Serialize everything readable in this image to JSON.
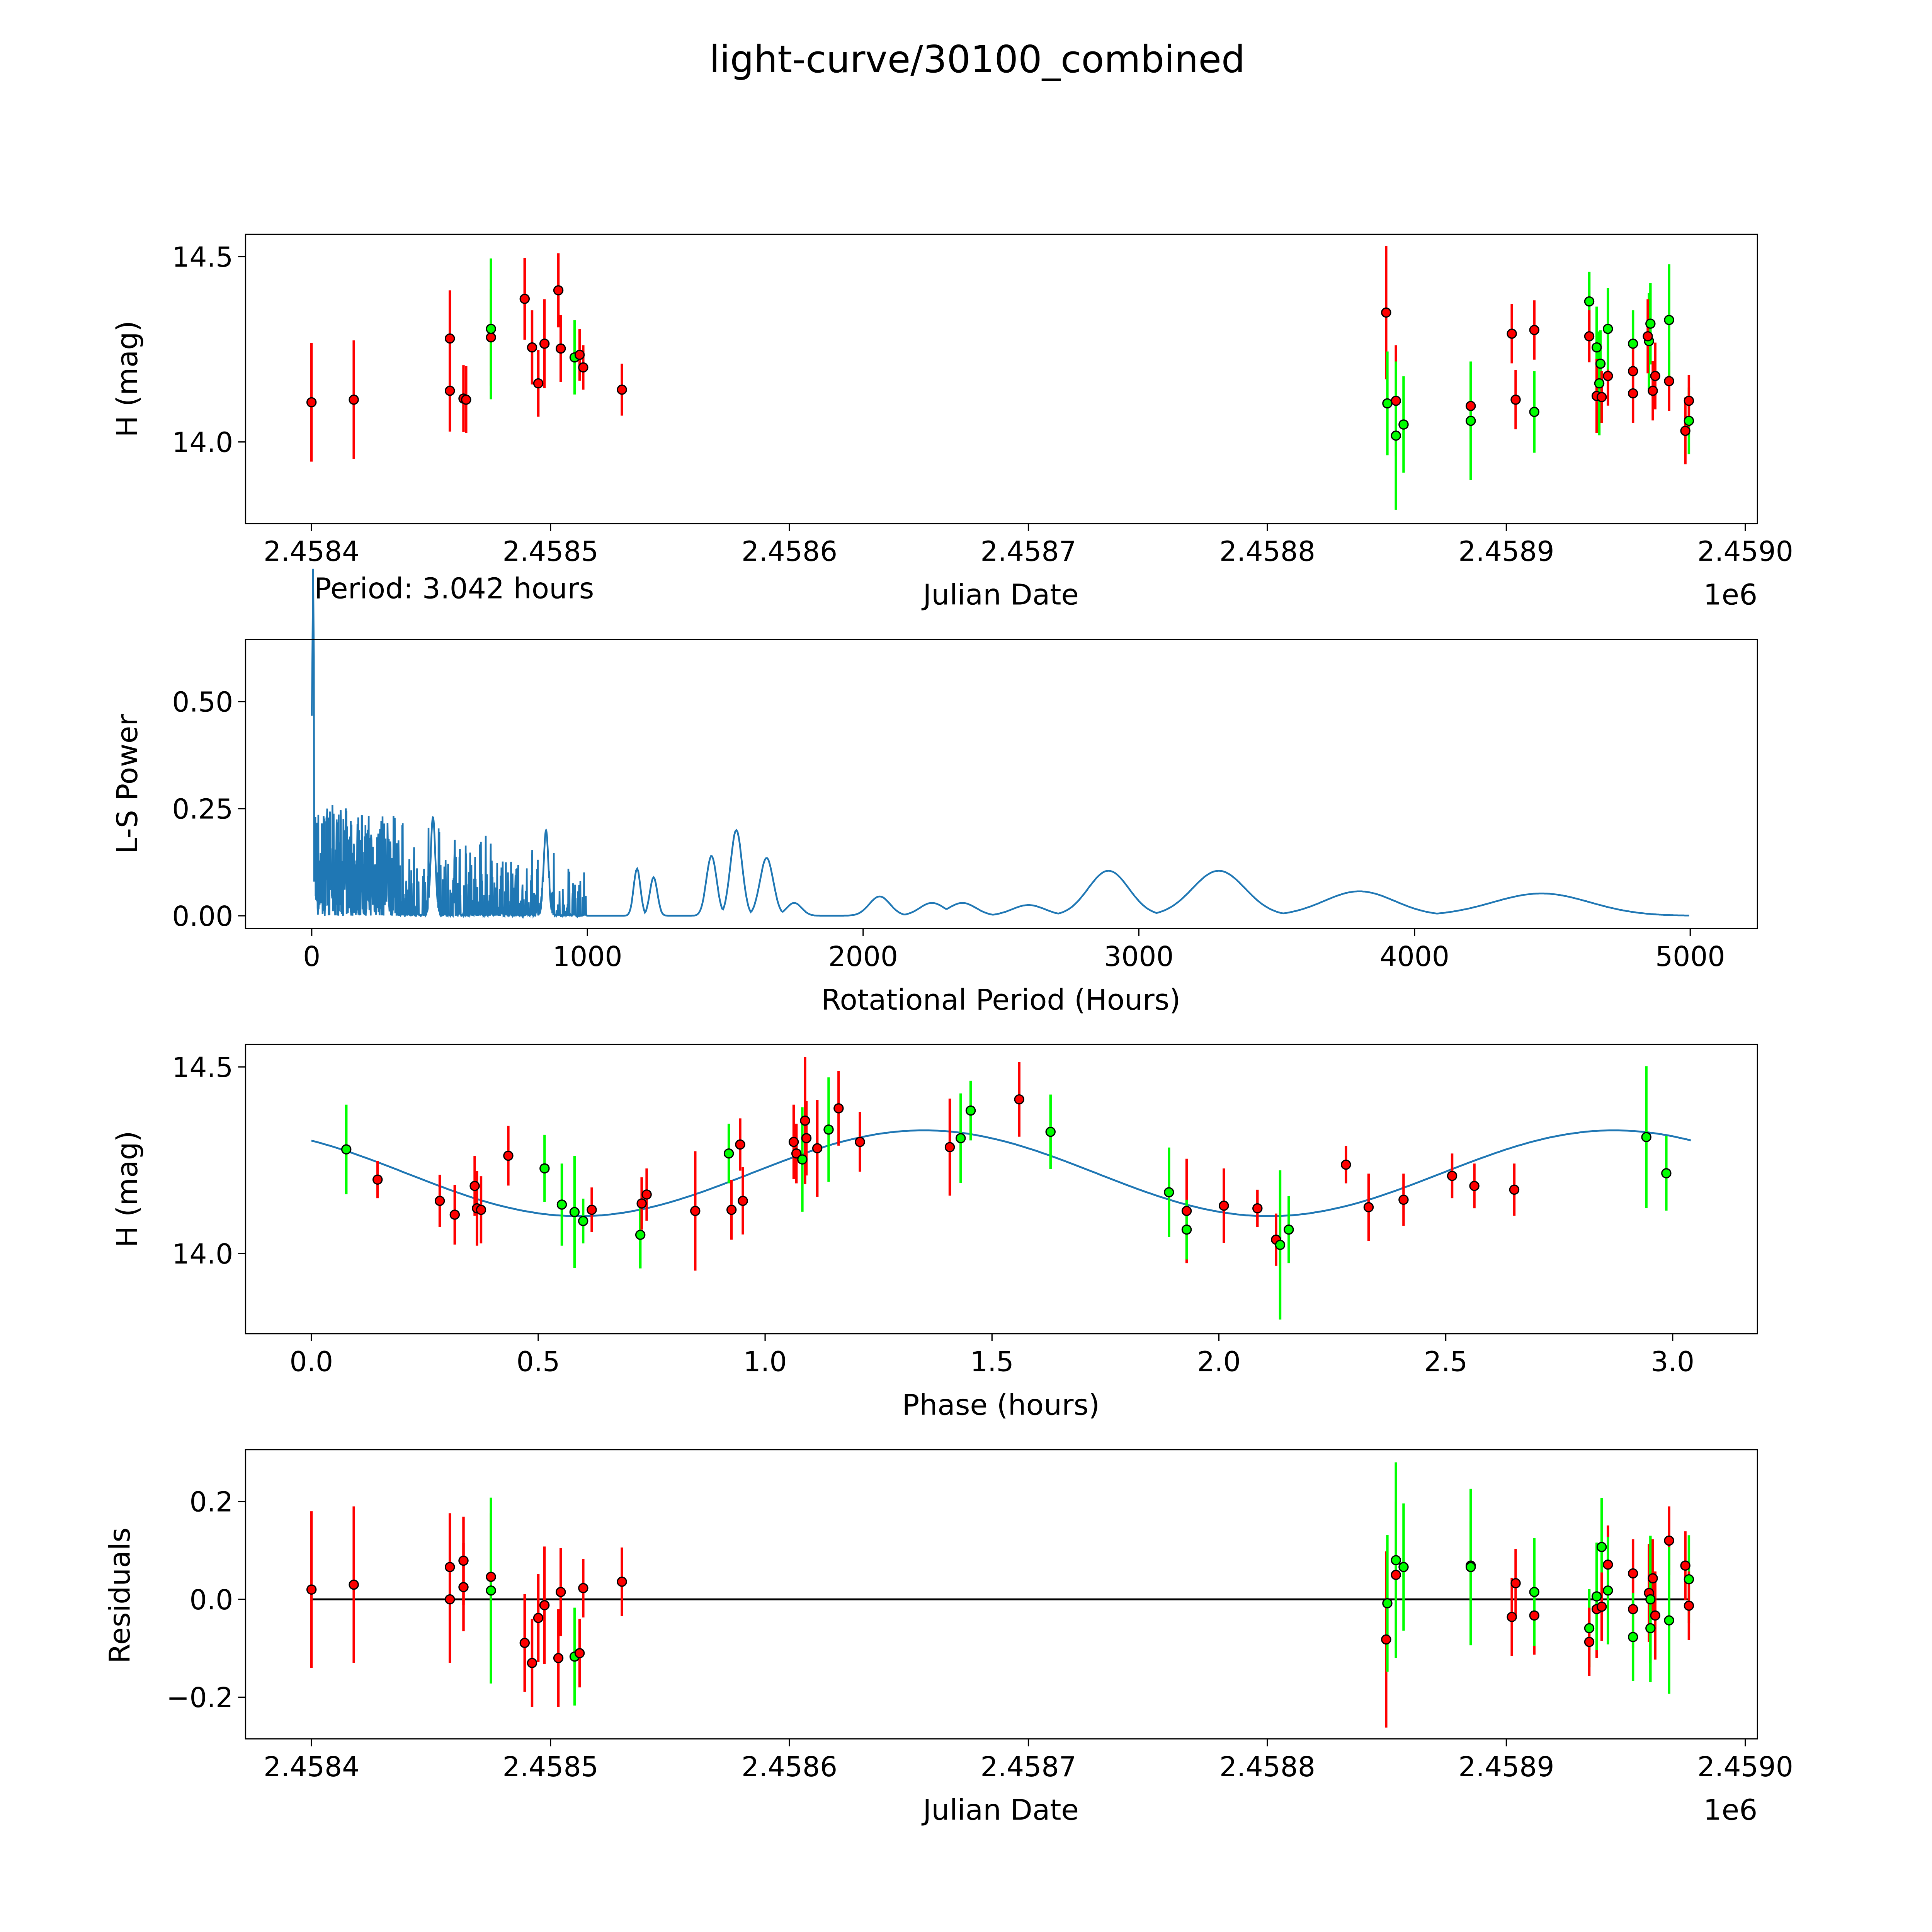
{
  "title": "light-curve/30100_combined",
  "colors": {
    "red": "#ff0000",
    "green": "#00ff00",
    "line": "#1f77b4",
    "edge": "#000000"
  },
  "chart_data": [
    {
      "type": "scatter",
      "name": "light-curve",
      "xlabel": "Julian Date",
      "ylabel": "H (mag)",
      "offset_text": "1e6",
      "annotation": "Period: 3.042 hours",
      "jd_base": 2458400,
      "xlim_offset": [
        -27.6,
        605.1
      ],
      "ylim": [
        13.78,
        14.56
      ],
      "xticks": [
        0,
        100,
        200,
        300,
        400,
        500,
        600
      ],
      "xtick_labels": [
        "2.4584",
        "2.4585",
        "2.4586",
        "2.4587",
        "2.4588",
        "2.4589",
        "2.4590"
      ],
      "yticks": [
        14.0,
        14.5
      ],
      "ytick_labels": [
        "14.0",
        "14.5"
      ],
      "points": [
        [
          0,
          14.107,
          0.16,
          "r"
        ],
        [
          17.7,
          14.114,
          0.16,
          "r"
        ],
        [
          57.9,
          14.279,
          0.13,
          "r"
        ],
        [
          57.9,
          14.138,
          0.11,
          "r"
        ],
        [
          63.6,
          14.117,
          0.09,
          "r"
        ],
        [
          64.7,
          14.114,
          0.09,
          "r"
        ],
        [
          75.1,
          14.282,
          0.13,
          "r"
        ],
        [
          75.1,
          14.305,
          0.19,
          "g"
        ],
        [
          89.2,
          14.386,
          0.11,
          "r"
        ],
        [
          92.3,
          14.255,
          0.1,
          "r"
        ],
        [
          94.9,
          14.158,
          0.09,
          "r"
        ],
        [
          97.5,
          14.265,
          0.12,
          "r"
        ],
        [
          103.3,
          14.409,
          0.1,
          "r"
        ],
        [
          104.3,
          14.252,
          0.09,
          "r"
        ],
        [
          110.1,
          14.228,
          0.1,
          "g"
        ],
        [
          112.2,
          14.235,
          0.07,
          "r"
        ],
        [
          113.7,
          14.201,
          0.06,
          "r"
        ],
        [
          129.9,
          14.141,
          0.07,
          "r"
        ],
        [
          449.7,
          14.349,
          0.18,
          "r"
        ],
        [
          450.2,
          14.104,
          0.14,
          "g"
        ],
        [
          453.8,
          14.111,
          0.15,
          "r"
        ],
        [
          453.8,
          14.017,
          0.2,
          "g"
        ],
        [
          457.0,
          14.047,
          0.13,
          "g"
        ],
        [
          485.1,
          14.097,
          0.09,
          "r"
        ],
        [
          485.1,
          14.057,
          0.16,
          "g"
        ],
        [
          502.3,
          14.292,
          0.08,
          "r"
        ],
        [
          503.9,
          14.114,
          0.08,
          "r"
        ],
        [
          511.7,
          14.302,
          0.08,
          "r"
        ],
        [
          511.7,
          14.081,
          0.11,
          "g"
        ],
        [
          534.7,
          14.379,
          0.08,
          "g"
        ],
        [
          534.7,
          14.285,
          0.07,
          "r"
        ],
        [
          537.8,
          14.255,
          0.11,
          "g"
        ],
        [
          537.8,
          14.124,
          0.1,
          "r"
        ],
        [
          538.9,
          14.158,
          0.14,
          "g"
        ],
        [
          539.4,
          14.211,
          0.09,
          "g"
        ],
        [
          539.9,
          14.121,
          0.07,
          "r"
        ],
        [
          542.5,
          14.178,
          0.08,
          "r"
        ],
        [
          542.5,
          14.305,
          0.11,
          "g"
        ],
        [
          553.0,
          14.265,
          0.09,
          "g"
        ],
        [
          553.0,
          14.191,
          0.07,
          "r"
        ],
        [
          553.0,
          14.131,
          0.08,
          "r"
        ],
        [
          559.7,
          14.272,
          0.13,
          "g"
        ],
        [
          560.3,
          14.319,
          0.11,
          "g"
        ],
        [
          559.2,
          14.285,
          0.1,
          "r"
        ],
        [
          561.3,
          14.138,
          0.08,
          "r"
        ],
        [
          562.3,
          14.178,
          0.09,
          "r"
        ],
        [
          568.1,
          14.164,
          0.08,
          "r"
        ],
        [
          568.1,
          14.329,
          0.15,
          "g"
        ],
        [
          574.9,
          14.03,
          0.09,
          "r"
        ],
        [
          576.4,
          14.057,
          0.09,
          "g"
        ],
        [
          576.4,
          14.111,
          0.07,
          "r"
        ]
      ]
    },
    {
      "type": "line",
      "name": "periodogram",
      "xlabel": "Rotational Period (Hours)",
      "ylabel": "L-S Power",
      "xlim": [
        -240,
        5244
      ],
      "ylim": [
        -0.03,
        0.645
      ],
      "xticks": [
        0,
        1000,
        2000,
        3000,
        4000,
        5000
      ],
      "xtick_labels": [
        "0",
        "1000",
        "2000",
        "3000",
        "4000",
        "5000"
      ],
      "yticks": [
        0,
        0.25,
        0.5
      ],
      "ytick_labels": [
        "0.00",
        "0.25",
        "0.50"
      ],
      "max_peak": [
        5,
        0.61
      ],
      "noisy_region_hours": [
        0,
        1000
      ],
      "peaks": [
        [
          440,
          0.23
        ],
        [
          850,
          0.2
        ],
        [
          1180,
          0.11
        ],
        [
          1240,
          0.09
        ],
        [
          1450,
          0.14
        ],
        [
          1540,
          0.2
        ],
        [
          1650,
          0.135
        ],
        [
          1750,
          0.03
        ],
        [
          2060,
          0.045
        ],
        [
          2250,
          0.03
        ],
        [
          2360,
          0.03
        ],
        [
          2600,
          0.025
        ],
        [
          2890,
          0.105
        ],
        [
          3290,
          0.105
        ],
        [
          3800,
          0.057
        ],
        [
          4460,
          0.052
        ]
      ]
    },
    {
      "type": "scatter",
      "name": "phased",
      "xlabel": "Phase (hours)",
      "ylabel": "H (mag)",
      "xlim": [
        -0.145,
        3.187
      ],
      "ylim": [
        13.785,
        14.56
      ],
      "xticks": [
        0,
        0.5,
        1,
        1.5,
        2,
        2.5,
        3
      ],
      "xtick_labels": [
        "0.0",
        "0.5",
        "1.0",
        "1.5",
        "2.0",
        "2.5",
        "3.0"
      ],
      "yticks": [
        14.0,
        14.5
      ],
      "ytick_labels": [
        "14.0",
        "14.5"
      ],
      "fit": {
        "mean": 14.215,
        "amplitude": 0.115,
        "period": 1.521,
        "peak_phase": 1.35,
        "range": [
          0,
          3.042
        ]
      },
      "points": [
        [
          0.077,
          14.279,
          0.12,
          "g"
        ],
        [
          0.146,
          14.198,
          0.05,
          "r"
        ],
        [
          0.283,
          14.141,
          0.07,
          "r"
        ],
        [
          0.316,
          14.104,
          0.08,
          "r"
        ],
        [
          0.36,
          14.181,
          0.08,
          "r"
        ],
        [
          0.365,
          14.121,
          0.1,
          "r"
        ],
        [
          0.374,
          14.117,
          0.09,
          "r"
        ],
        [
          0.434,
          14.262,
          0.08,
          "r"
        ],
        [
          0.514,
          14.228,
          0.09,
          "g"
        ],
        [
          0.552,
          14.131,
          0.11,
          "g"
        ],
        [
          0.58,
          14.111,
          0.15,
          "g"
        ],
        [
          0.599,
          14.087,
          0.06,
          "g"
        ],
        [
          0.618,
          14.117,
          0.06,
          "r"
        ],
        [
          0.725,
          14.05,
          0.09,
          "g"
        ],
        [
          0.728,
          14.134,
          0.07,
          "r"
        ],
        [
          0.739,
          14.158,
          0.07,
          "r"
        ],
        [
          0.846,
          14.114,
          0.16,
          "r"
        ],
        [
          0.92,
          14.268,
          0.08,
          "g"
        ],
        [
          0.926,
          14.117,
          0.08,
          "r"
        ],
        [
          0.945,
          14.292,
          0.07,
          "r"
        ],
        [
          0.951,
          14.141,
          0.09,
          "r"
        ],
        [
          1.063,
          14.299,
          0.1,
          "r"
        ],
        [
          1.069,
          14.268,
          0.08,
          "r"
        ],
        [
          1.082,
          14.252,
          0.14,
          "g"
        ],
        [
          1.088,
          14.356,
          0.17,
          "r"
        ],
        [
          1.091,
          14.309,
          0.1,
          "r"
        ],
        [
          1.115,
          14.282,
          0.13,
          "r"
        ],
        [
          1.14,
          14.332,
          0.14,
          "g"
        ],
        [
          1.162,
          14.389,
          0.1,
          "r"
        ],
        [
          1.209,
          14.299,
          0.08,
          "r"
        ],
        [
          1.407,
          14.285,
          0.13,
          "r"
        ],
        [
          1.431,
          14.309,
          0.12,
          "g"
        ],
        [
          1.453,
          14.383,
          0.08,
          "g"
        ],
        [
          1.56,
          14.413,
          0.1,
          "r"
        ],
        [
          1.629,
          14.326,
          0.1,
          "g"
        ],
        [
          1.89,
          14.164,
          0.12,
          "g"
        ],
        [
          1.929,
          14.114,
          0.14,
          "r"
        ],
        [
          1.929,
          14.064,
          0.08,
          "g"
        ],
        [
          2.011,
          14.128,
          0.1,
          "r"
        ],
        [
          2.085,
          14.121,
          0.05,
          "r"
        ],
        [
          2.126,
          14.037,
          0.07,
          "r"
        ],
        [
          2.135,
          14.023,
          0.2,
          "g"
        ],
        [
          2.154,
          14.064,
          0.09,
          "g"
        ],
        [
          2.28,
          14.238,
          0.05,
          "r"
        ],
        [
          2.33,
          14.124,
          0.09,
          "r"
        ],
        [
          2.407,
          14.144,
          0.07,
          "r"
        ],
        [
          2.514,
          14.208,
          0.06,
          "r"
        ],
        [
          2.563,
          14.181,
          0.06,
          "r"
        ],
        [
          2.651,
          14.171,
          0.07,
          "r"
        ],
        [
          2.942,
          14.312,
          0.19,
          "g"
        ],
        [
          2.986,
          14.215,
          0.1,
          "g"
        ]
      ]
    },
    {
      "type": "scatter",
      "name": "residuals",
      "xlabel": "Julian Date",
      "ylabel": "Residuals",
      "offset_text": "1e6",
      "jd_base": 2458400,
      "xlim_offset": [
        -27.6,
        605.1
      ],
      "ylim": [
        -0.285,
        0.306
      ],
      "xticks": [
        0,
        100,
        200,
        300,
        400,
        500,
        600
      ],
      "xtick_labels": [
        "2.4584",
        "2.4585",
        "2.4586",
        "2.4587",
        "2.4588",
        "2.4589",
        "2.4590"
      ],
      "yticks": [
        -0.2,
        0,
        0.2
      ],
      "ytick_labels": [
        "−0.2",
        "0.0",
        "0.2"
      ],
      "zero_line": 0,
      "points": [
        [
          0,
          0.02,
          0.16,
          "r"
        ],
        [
          17.7,
          0.03,
          0.16,
          "r"
        ],
        [
          57.9,
          0.066,
          0.11,
          "r"
        ],
        [
          57.9,
          0.0,
          0.13,
          "r"
        ],
        [
          63.6,
          0.079,
          0.09,
          "r"
        ],
        [
          63.6,
          0.025,
          0.09,
          "r"
        ],
        [
          75.1,
          0.046,
          0.13,
          "r"
        ],
        [
          75.1,
          0.018,
          0.19,
          "g"
        ],
        [
          89.2,
          -0.089,
          0.1,
          "r"
        ],
        [
          92.3,
          -0.13,
          0.09,
          "r"
        ],
        [
          94.9,
          -0.038,
          0.09,
          "r"
        ],
        [
          97.5,
          -0.012,
          0.12,
          "r"
        ],
        [
          103.3,
          -0.12,
          0.1,
          "r"
        ],
        [
          104.3,
          0.015,
          0.09,
          "r"
        ],
        [
          110.1,
          -0.117,
          0.1,
          "g"
        ],
        [
          112.2,
          -0.11,
          0.07,
          "r"
        ],
        [
          113.7,
          0.023,
          0.06,
          "r"
        ],
        [
          129.9,
          0.036,
          0.07,
          "r"
        ],
        [
          449.7,
          -0.082,
          0.18,
          "r"
        ],
        [
          450.2,
          -0.008,
          0.14,
          "g"
        ],
        [
          453.8,
          0.05,
          0.15,
          "r"
        ],
        [
          453.8,
          0.08,
          0.2,
          "g"
        ],
        [
          457.0,
          0.066,
          0.13,
          "g"
        ],
        [
          485.1,
          0.069,
          0.09,
          "r"
        ],
        [
          485.1,
          0.066,
          0.16,
          "g"
        ],
        [
          502.3,
          -0.036,
          0.08,
          "r"
        ],
        [
          503.9,
          0.033,
          0.07,
          "r"
        ],
        [
          511.7,
          -0.033,
          0.08,
          "r"
        ],
        [
          511.7,
          0.015,
          0.11,
          "g"
        ],
        [
          534.7,
          -0.059,
          0.08,
          "g"
        ],
        [
          534.7,
          -0.087,
          0.07,
          "r"
        ],
        [
          537.8,
          -0.02,
          0.1,
          "r"
        ],
        [
          537.8,
          0.006,
          0.11,
          "g"
        ],
        [
          539.9,
          0.107,
          0.1,
          "g"
        ],
        [
          539.9,
          -0.015,
          0.07,
          "r"
        ],
        [
          542.5,
          0.071,
          0.08,
          "r"
        ],
        [
          542.5,
          0.018,
          0.11,
          "g"
        ],
        [
          553.0,
          0.053,
          0.07,
          "r"
        ],
        [
          553.0,
          -0.02,
          0.08,
          "r"
        ],
        [
          553.0,
          -0.077,
          0.09,
          "g"
        ],
        [
          559.7,
          0.013,
          0.1,
          "r"
        ],
        [
          560.3,
          0.0,
          0.13,
          "g"
        ],
        [
          561.3,
          0.043,
          0.08,
          "r"
        ],
        [
          560.3,
          -0.059,
          0.11,
          "g"
        ],
        [
          562.3,
          -0.033,
          0.09,
          "r"
        ],
        [
          568.1,
          0.12,
          0.07,
          "r"
        ],
        [
          568.1,
          -0.043,
          0.15,
          "g"
        ],
        [
          574.9,
          0.069,
          0.07,
          "r"
        ],
        [
          576.4,
          0.041,
          0.09,
          "g"
        ],
        [
          576.4,
          -0.013,
          0.07,
          "r"
        ]
      ]
    }
  ]
}
